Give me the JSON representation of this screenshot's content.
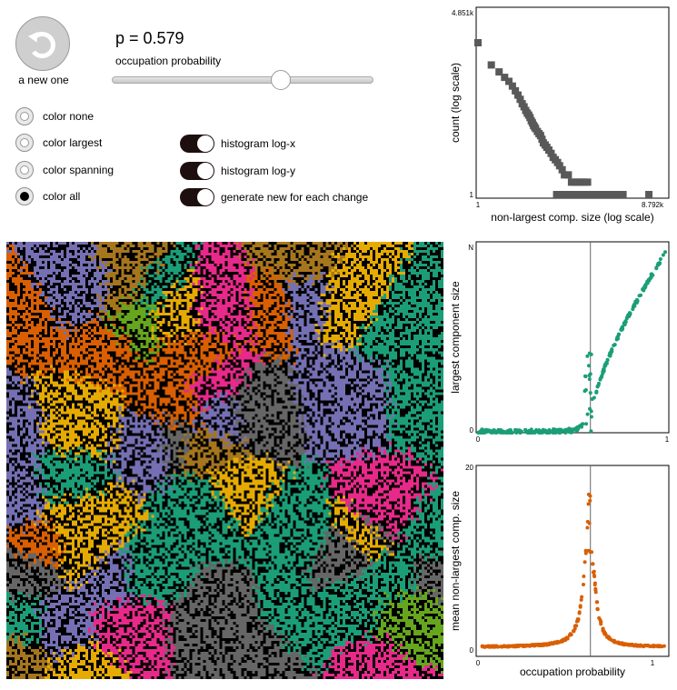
{
  "controls": {
    "regen_label": "a new one",
    "p_text": "p = 0.579",
    "p_value": 0.579,
    "slider_label": "occupation probability",
    "radios": [
      {
        "label": "color none",
        "selected": false
      },
      {
        "label": "color largest",
        "selected": false
      },
      {
        "label": "color spanning",
        "selected": false
      },
      {
        "label": "color all",
        "selected": true
      }
    ],
    "toggles": [
      {
        "label": "histogram log-x",
        "on": true
      },
      {
        "label": "histogram log-y",
        "on": true
      },
      {
        "label": "generate new for each change",
        "on": true
      }
    ]
  },
  "colors": {
    "gray": "#595959",
    "green": "#1b9e77",
    "orange": "#d95f02",
    "palette": [
      "#1b9e77",
      "#d95f02",
      "#7570b3",
      "#e7298a",
      "#66a61e",
      "#e6ab02",
      "#a6761d",
      "#666666"
    ]
  },
  "chart_data": [
    {
      "type": "scatter",
      "ylabel": "count (log scale)",
      "xlabel": "non-largest comp. size (log scale)",
      "x_ticks": [
        "1",
        "8.792k"
      ],
      "y_ticks": [
        "1",
        "4.851k"
      ],
      "xlim": [
        1,
        8792
      ],
      "ylim": [
        1,
        4851
      ],
      "log_x": true,
      "log_y": true,
      "color": "#595959",
      "points": [
        [
          1,
          4851
        ],
        [
          2,
          1400
        ],
        [
          3,
          950
        ],
        [
          4,
          700
        ],
        [
          5,
          560
        ],
        [
          6,
          430
        ],
        [
          7,
          330
        ],
        [
          8,
          260
        ],
        [
          9,
          205
        ],
        [
          10,
          160
        ],
        [
          11,
          135
        ],
        [
          12,
          110
        ],
        [
          13,
          95
        ],
        [
          14,
          85
        ],
        [
          15,
          74
        ],
        [
          16,
          62
        ],
        [
          17,
          55
        ],
        [
          18,
          48
        ],
        [
          19,
          44
        ],
        [
          20,
          40
        ],
        [
          22,
          34
        ],
        [
          24,
          30
        ],
        [
          26,
          27
        ],
        [
          28,
          22
        ],
        [
          30,
          18
        ],
        [
          33,
          16
        ],
        [
          36,
          14
        ],
        [
          40,
          12
        ],
        [
          45,
          10
        ],
        [
          50,
          8
        ],
        [
          56,
          7
        ],
        [
          63,
          6
        ],
        [
          70,
          5
        ],
        [
          80,
          4
        ],
        [
          90,
          3
        ],
        [
          110,
          3
        ],
        [
          130,
          2
        ],
        [
          150,
          2
        ],
        [
          180,
          2
        ],
        [
          210,
          2
        ],
        [
          250,
          2
        ],
        [
          300,
          2
        ],
        [
          60,
          1
        ],
        [
          75,
          1
        ],
        [
          95,
          1
        ],
        [
          120,
          1
        ],
        [
          160,
          1
        ],
        [
          200,
          1
        ],
        [
          260,
          1
        ],
        [
          330,
          1
        ],
        [
          420,
          1
        ],
        [
          520,
          1
        ],
        [
          650,
          1
        ],
        [
          800,
          1
        ],
        [
          950,
          1
        ],
        [
          1150,
          1
        ],
        [
          1350,
          1
        ],
        [
          1600,
          1
        ],
        [
          1900,
          1
        ],
        [
          7300,
          1
        ]
      ]
    },
    {
      "type": "scatter",
      "ylabel": "largest component size",
      "x_ticks": [
        "0",
        "1"
      ],
      "y_ticks": [
        "0",
        "N"
      ],
      "xlim": [
        0,
        1
      ],
      "ylim": [
        0,
        1
      ],
      "critical_p": 0.593,
      "color": "#1b9e77"
    },
    {
      "type": "scatter",
      "ylabel": "mean non-largest comp. size",
      "xlabel": "occupation probability",
      "x_ticks": [
        "0",
        "1"
      ],
      "y_ticks": [
        "0",
        "20"
      ],
      "xlim": [
        0,
        1
      ],
      "ylim": [
        0,
        20
      ],
      "critical_p": 0.593,
      "color": "#d95f02"
    }
  ]
}
